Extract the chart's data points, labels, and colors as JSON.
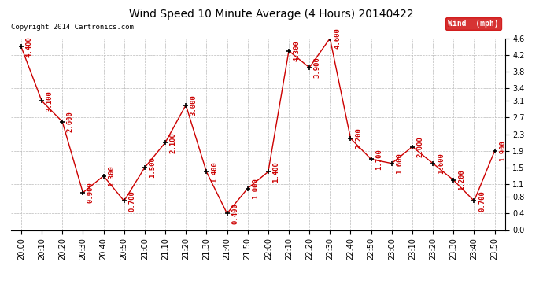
{
  "title": "Wind Speed 10 Minute Average (4 Hours) 20140422",
  "copyright": "Copyright 2014 Cartronics.com",
  "legend_label": "Wind  (mph)",
  "times": [
    "20:00",
    "20:10",
    "20:20",
    "20:30",
    "20:40",
    "20:50",
    "21:00",
    "21:10",
    "21:20",
    "21:30",
    "21:40",
    "21:50",
    "22:00",
    "22:10",
    "22:20",
    "22:30",
    "22:40",
    "22:50",
    "23:00",
    "23:10",
    "23:20",
    "23:30",
    "23:40",
    "23:50"
  ],
  "values": [
    4.4,
    3.1,
    2.6,
    0.9,
    1.3,
    0.7,
    1.5,
    2.1,
    3.0,
    1.4,
    0.4,
    1.0,
    1.4,
    4.3,
    3.9,
    4.6,
    2.2,
    1.7,
    1.6,
    2.0,
    1.6,
    1.2,
    0.7,
    1.9
  ],
  "ylim": [
    0.0,
    4.6
  ],
  "yticks": [
    0.0,
    0.4,
    0.8,
    1.1,
    1.5,
    1.9,
    2.3,
    2.7,
    3.1,
    3.4,
    3.8,
    4.2,
    4.6
  ],
  "line_color": "#cc0000",
  "marker_color": "#000000",
  "bg_color": "#ffffff",
  "grid_color": "#bbbbbb",
  "title_color": "#000000",
  "legend_bg": "#cc0000",
  "legend_text_color": "#ffffff",
  "copyright_color": "#000000",
  "label_color": "#cc0000",
  "title_fontsize": 10,
  "label_fontsize": 6.5,
  "tick_fontsize": 7,
  "copyright_fontsize": 6.5
}
